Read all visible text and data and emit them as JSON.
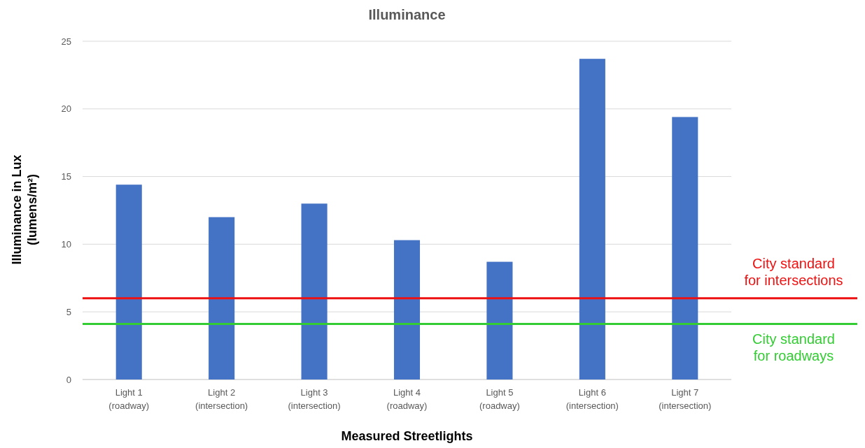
{
  "chart_data": {
    "type": "bar",
    "title": "Illuminance",
    "xlabel": "Measured Streetlights",
    "ylabel": "Illuminance in Lux\n(lumens/m²)",
    "categories": [
      "Light 1\n(roadway)",
      "Light 2\n(intersection)",
      "Light 3\n(intersection)",
      "Light 4\n(roadway)",
      "Light 5\n(roadway)",
      "Light 6\n(intersection)",
      "Light 7\n(intersection)"
    ],
    "values": [
      14.4,
      12.0,
      13.0,
      10.3,
      8.7,
      23.7,
      19.4
    ],
    "color": "#4472c4",
    "ylim": [
      0,
      25
    ],
    "yticks": [
      0,
      5,
      10,
      15,
      20,
      25
    ],
    "grid": "y",
    "ref_lines": [
      {
        "axis": "y",
        "value": 6,
        "label": "City standard\nfor intersections",
        "color": "#ee1111"
      },
      {
        "axis": "y",
        "value": 4.1,
        "label": "City standard\nfor roadways",
        "color": "#33cc33"
      }
    ]
  }
}
